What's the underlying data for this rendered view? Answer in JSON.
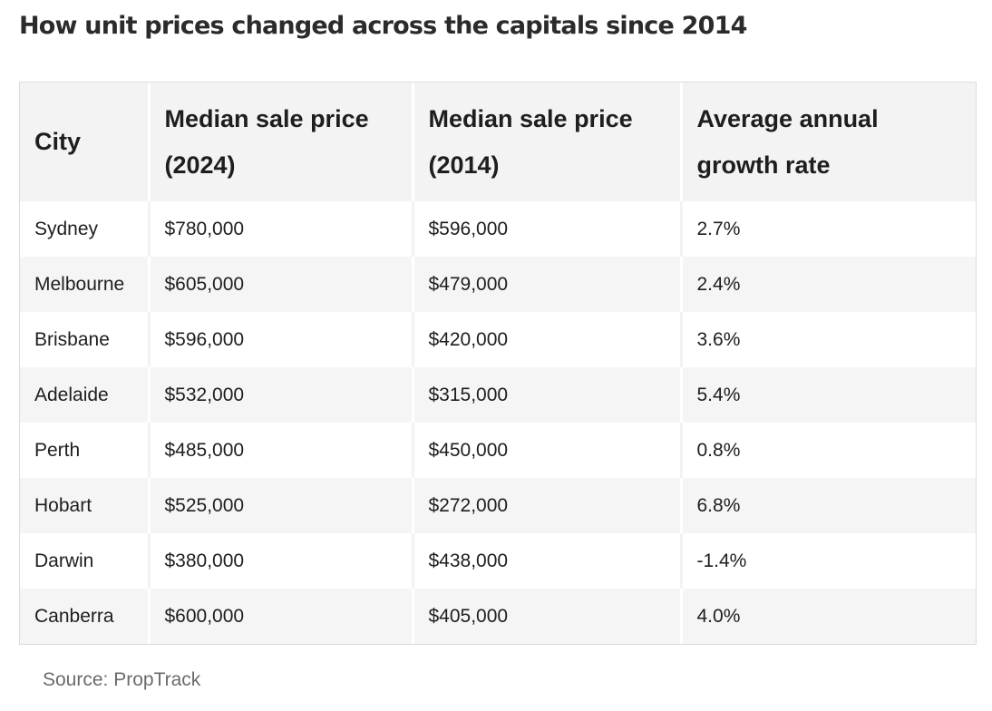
{
  "title": "How unit prices changed across the capitals since 2014",
  "table": {
    "headers": [
      "City",
      "Median sale price (2024)",
      "Median sale price (2014)",
      "Average annual growth rate"
    ],
    "rows": [
      [
        "Sydney",
        "$780,000",
        "$596,000",
        "2.7%"
      ],
      [
        "Melbourne",
        "$605,000",
        "$479,000",
        "2.4%"
      ],
      [
        "Brisbane",
        "$596,000",
        "$420,000",
        "3.6%"
      ],
      [
        "Adelaide",
        "$532,000",
        "$315,000",
        "5.4%"
      ],
      [
        "Perth",
        "$485,000",
        "$450,000",
        "0.8%"
      ],
      [
        "Hobart",
        "$525,000",
        "$272,000",
        "6.8%"
      ],
      [
        "Darwin",
        "$380,000",
        "$438,000",
        "-1.4%"
      ],
      [
        "Canberra",
        "$600,000",
        "$405,000",
        "4.0%"
      ]
    ]
  },
  "source": "Source: PropTrack"
}
